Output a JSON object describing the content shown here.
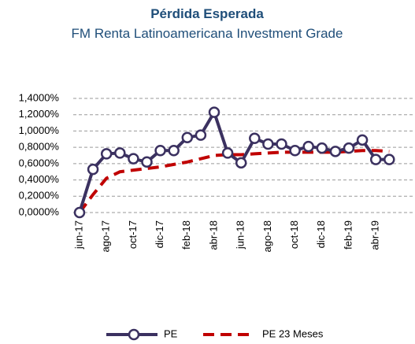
{
  "chart_data": {
    "type": "line",
    "title": "Pérdida Esperada",
    "subtitle": "FM Renta Latinoamericana Investment Grade",
    "categories": [
      "jun-17",
      null,
      "ago-17",
      null,
      "oct-17",
      null,
      "dic-17",
      null,
      "feb-18",
      null,
      "abr-18",
      null,
      "jun-18",
      null,
      "ago-18",
      null,
      "oct-18",
      null,
      "dic-18",
      null,
      "feb-19",
      null,
      "abr-19",
      null
    ],
    "series": [
      {
        "name": "PE",
        "color": "#3b3160",
        "style": "solid",
        "markers": true,
        "values": [
          0,
          0.53,
          0.72,
          0.73,
          0.66,
          0.62,
          0.76,
          0.76,
          0.92,
          0.95,
          1.23,
          0.73,
          0.61,
          0.91,
          0.84,
          0.84,
          0.76,
          0.81,
          0.79,
          0.75,
          0.79,
          0.89,
          0.65,
          0.65
        ]
      },
      {
        "name": "PE 23 Meses",
        "color": "#c00000",
        "style": "dashed",
        "markers": false,
        "values": [
          0,
          0.22,
          0.42,
          0.5,
          0.52,
          0.54,
          0.56,
          0.59,
          0.62,
          0.66,
          0.7,
          0.71,
          0.71,
          0.72,
          0.73,
          0.74,
          0.74,
          0.74,
          0.74,
          0.74,
          0.75,
          0.76,
          0.76,
          0.75
        ]
      }
    ],
    "ylim": [
      0,
      1.4
    ],
    "yticks": [
      {
        "value": 0,
        "label": "0,0000%"
      },
      {
        "value": 0.2,
        "label": "0,2000%"
      },
      {
        "value": 0.4,
        "label": "0,4000%"
      },
      {
        "value": 0.6,
        "label": "0,6000%"
      },
      {
        "value": 0.8,
        "label": "0,8000%"
      },
      {
        "value": 1,
        "label": "1,0000%"
      },
      {
        "value": 1.2,
        "label": "1,2000%"
      },
      {
        "value": 1.4,
        "label": "1,4000%"
      }
    ],
    "grid": true,
    "legend": "bottom"
  }
}
